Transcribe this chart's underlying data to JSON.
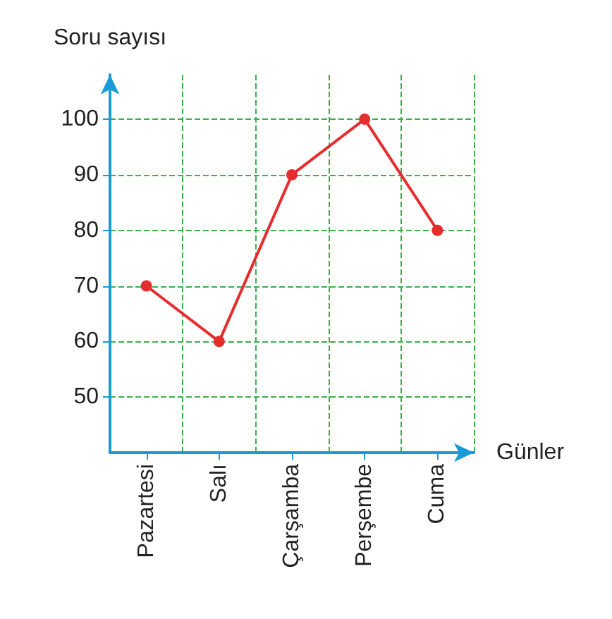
{
  "chart_data": {
    "type": "line",
    "xlabel": "Günler",
    "ylabel": "Soru sayısı",
    "categories": [
      "Pazartesi",
      "Salı",
      "Çarşamba",
      "Perşembe",
      "Cuma"
    ],
    "series": [
      {
        "color": "#e52d2d",
        "values": [
          70,
          60,
          90,
          100,
          80
        ]
      }
    ],
    "ylim": [
      40,
      108
    ],
    "yticks": [
      50,
      60,
      70,
      80,
      90,
      100
    ],
    "grid": true,
    "marker": "circle",
    "line_style": "solid"
  }
}
